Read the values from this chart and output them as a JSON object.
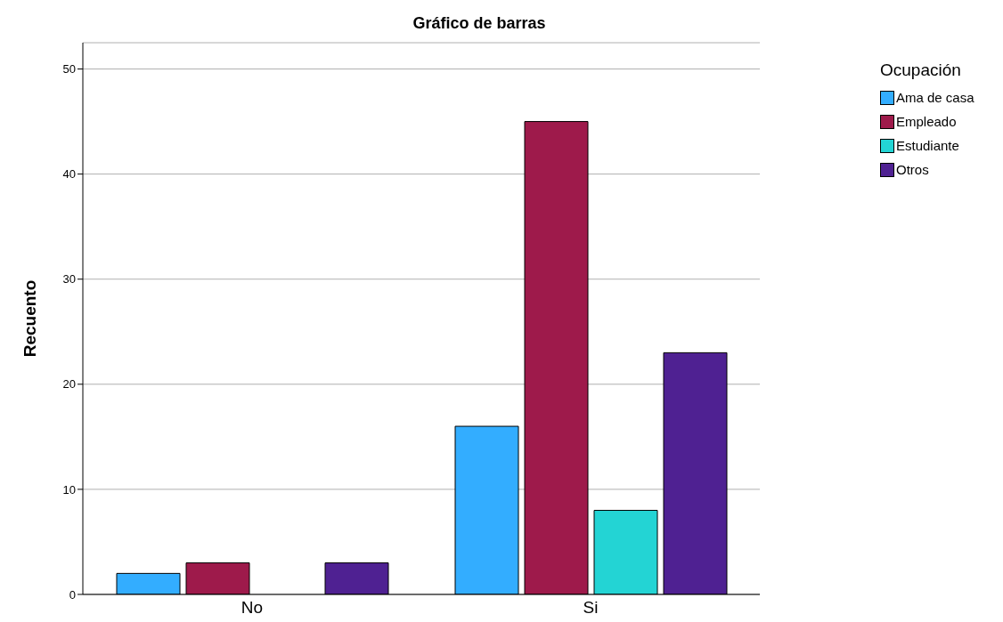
{
  "chart_data": {
    "type": "bar",
    "title": "Gráfico de barras",
    "ylabel": "Recuento",
    "legend_title": "Ocupación",
    "categories": [
      "No",
      "Si"
    ],
    "series": [
      {
        "name": "Ama de casa",
        "color": "#33adff",
        "values": [
          2,
          16
        ]
      },
      {
        "name": "Empleado",
        "color": "#9e1a4b",
        "values": [
          3,
          45
        ]
      },
      {
        "name": "Estudiante",
        "color": "#23d4d4",
        "values": [
          null,
          8
        ]
      },
      {
        "name": "Otros",
        "color": "#4f2192",
        "values": [
          3,
          23
        ]
      }
    ],
    "ylim": [
      0,
      52.5
    ],
    "yticks": [
      0,
      10,
      20,
      30,
      40,
      50
    ],
    "grid": "y",
    "legend": "top right"
  }
}
